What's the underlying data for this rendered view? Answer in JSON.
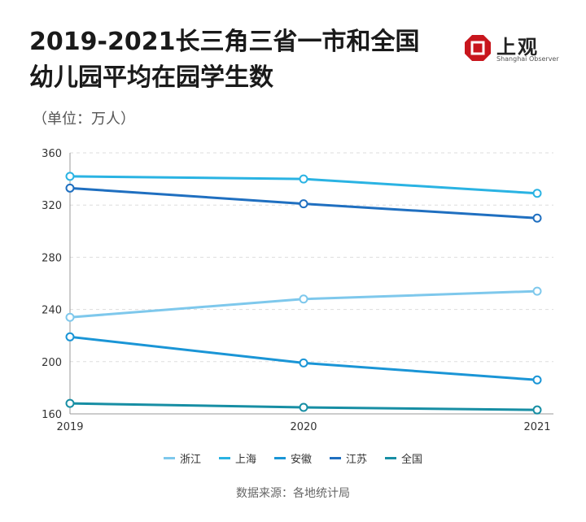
{
  "title_lines": [
    "2019-2021长三角三省一市和全国",
    "幼儿园平均在园学生数"
  ],
  "unit": "（单位：万人）",
  "logo": {
    "name": "上观",
    "sub": "Shanghai Observer"
  },
  "source": "数据来源：各地统计局",
  "chart_data": {
    "type": "line",
    "x": [
      "2019",
      "2020",
      "2021"
    ],
    "ylim": [
      160,
      360
    ],
    "yticks": [
      160,
      200,
      240,
      280,
      320,
      360
    ],
    "grid": true,
    "legend_position": "bottom",
    "series": [
      {
        "name": "浙江",
        "values": [
          234,
          248,
          254
        ],
        "color": "#7ec8ec"
      },
      {
        "name": "上海",
        "values": [
          342,
          340,
          329
        ],
        "color": "#2ab3e3"
      },
      {
        "name": "安徽",
        "values": [
          219,
          199,
          186
        ],
        "color": "#1a95d6"
      },
      {
        "name": "江苏",
        "values": [
          333,
          321,
          310
        ],
        "color": "#1f6fc0"
      },
      {
        "name": "全国",
        "values": [
          168,
          165,
          163
        ],
        "color": "#178ea4"
      }
    ]
  }
}
